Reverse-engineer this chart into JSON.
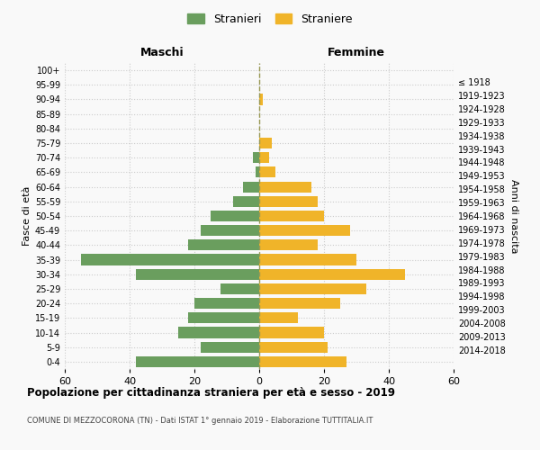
{
  "age_groups": [
    "0-4",
    "5-9",
    "10-14",
    "15-19",
    "20-24",
    "25-29",
    "30-34",
    "35-39",
    "40-44",
    "45-49",
    "50-54",
    "55-59",
    "60-64",
    "65-69",
    "70-74",
    "75-79",
    "80-84",
    "85-89",
    "90-94",
    "95-99",
    "100+"
  ],
  "birth_years": [
    "2014-2018",
    "2009-2013",
    "2004-2008",
    "1999-2003",
    "1994-1998",
    "1989-1993",
    "1984-1988",
    "1979-1983",
    "1974-1978",
    "1969-1973",
    "1964-1968",
    "1959-1963",
    "1954-1958",
    "1949-1953",
    "1944-1948",
    "1939-1943",
    "1934-1938",
    "1929-1933",
    "1924-1928",
    "1919-1923",
    "≤ 1918"
  ],
  "males": [
    38,
    18,
    25,
    22,
    20,
    12,
    38,
    55,
    22,
    18,
    15,
    8,
    5,
    1,
    2,
    0,
    0,
    0,
    0,
    0,
    0
  ],
  "females": [
    27,
    21,
    20,
    12,
    25,
    33,
    45,
    30,
    18,
    28,
    20,
    18,
    16,
    5,
    3,
    4,
    0,
    0,
    1,
    0,
    0
  ],
  "male_color": "#6a9e5e",
  "female_color": "#f0b429",
  "background_color": "#f9f9f9",
  "grid_color": "#cccccc",
  "title": "Popolazione per cittadinanza straniera per età e sesso - 2019",
  "subtitle": "COMUNE DI MEZZOCORONA (TN) - Dati ISTAT 1° gennaio 2019 - Elaborazione TUTTITALIA.IT",
  "xlabel_left": "Maschi",
  "xlabel_right": "Femmine",
  "ylabel_left": "Fasce di età",
  "ylabel_right": "Anni di nascita",
  "legend_male": "Stranieri",
  "legend_female": "Straniere",
  "xlim": 60,
  "center_line_color": "#999955"
}
